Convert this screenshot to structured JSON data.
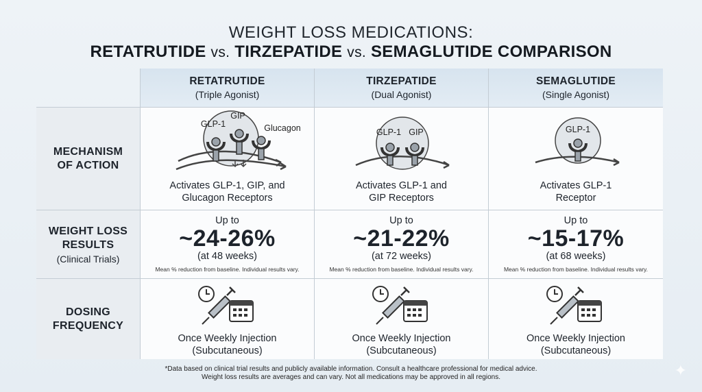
{
  "title": {
    "line1": "WEIGHT LOSS MEDICATIONS:",
    "drug1": "RETATRUTIDE",
    "vs1": "vs.",
    "drug2": "TIRZEPATIDE",
    "vs2": "vs.",
    "drug3": "SEMAGLUTIDE COMPARISON"
  },
  "rows": {
    "mechanism": [
      "MECHANISM",
      "OF ACTION"
    ],
    "weight": [
      "WEIGHT LOSS",
      "RESULTS"
    ],
    "weight_sub": "(Clinical Trials)",
    "dosing": [
      "DOSING",
      "FREQUENCY"
    ]
  },
  "drugs": [
    {
      "name": "RETATRUTIDE",
      "type": "(Triple Agonist)",
      "receptors": [
        "GLP-1",
        "GIP",
        "Glucagon"
      ],
      "mechanism": [
        "Activates GLP-1, GIP, and",
        "Glucagon Receptors"
      ],
      "up_to": "Up to",
      "loss": "~24-26%",
      "weeks": "(at 48 weeks)",
      "note": "Mean % reduction from baseline. Individual results vary.",
      "dosing": [
        "Once Weekly Injection",
        "(Subcutaneous)"
      ]
    },
    {
      "name": "TIRZEPATIDE",
      "type": "(Dual Agonist)",
      "receptors": [
        "GLP-1",
        "GIP"
      ],
      "mechanism": [
        "Activates GLP-1 and",
        "GIP Receptors"
      ],
      "up_to": "Up to",
      "loss": "~21-22%",
      "weeks": "(at 72 weeks)",
      "note": "Mean % reduction from baseline. Individual results vary.",
      "dosing": [
        "Once Weekly Injection",
        "(Subcutaneous)"
      ]
    },
    {
      "name": "SEMAGLUTIDE",
      "type": "(Single Agonist)",
      "receptors": [
        "GLP-1"
      ],
      "mechanism": [
        "Activates GLP-1",
        "Receptor"
      ],
      "up_to": "Up to",
      "loss": "~15-17%",
      "weeks": "(at 68 weeks)",
      "note": "Mean % reduction from baseline. Individual results vary.",
      "dosing": [
        "Once Weekly Injection",
        "(Subcutaneous)"
      ]
    }
  ],
  "footnote": [
    "*Data based on clinical trial results and publicly available information. Consult a healthcare professional for medical advice.",
    "Weight loss results are averages and can vary. Not all medications may be approved in all regions."
  ],
  "icons": {
    "receptor": "receptor-icon",
    "clock": "clock-icon",
    "syringe": "syringe-icon",
    "calendar": "calendar-icon",
    "sparkle": "sparkle-icon"
  },
  "colors": {
    "header_bg": "#dbe6f0",
    "label_bg": "#e9edf1",
    "grid_line": "#c3ccd4"
  }
}
